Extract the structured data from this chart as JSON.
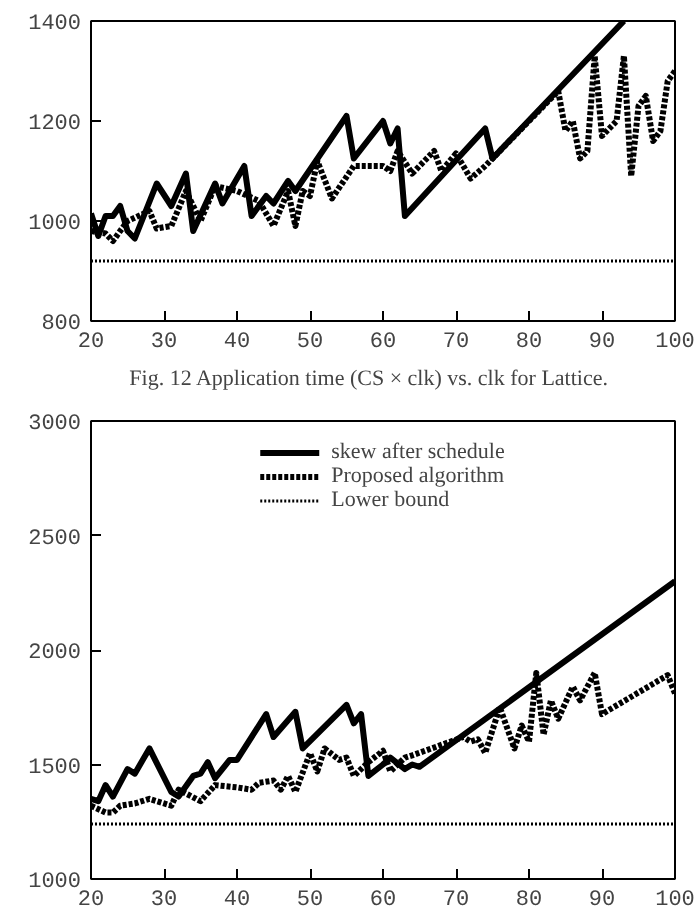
{
  "chart_data": [
    {
      "type": "line",
      "annotations": [
        "Fig. 12      Application time (CS × clk) vs. clk for Lattice."
      ],
      "xlim": [
        20,
        100
      ],
      "ylim": [
        800,
        1400
      ],
      "xticks": [
        20,
        30,
        40,
        50,
        60,
        70,
        80,
        90,
        100
      ],
      "yticks": [
        800,
        1000,
        1200,
        1400
      ],
      "grid": false,
      "legend": false,
      "series": [
        {
          "color": "#000000",
          "line_style": "solid",
          "x": [
            20,
            21,
            22,
            23,
            24,
            25,
            26,
            29,
            31,
            33,
            34,
            37,
            38,
            41,
            42,
            44,
            45,
            47,
            48,
            55,
            56,
            60,
            61,
            62,
            63,
            74,
            75,
            93
          ],
          "values": [
            1015,
            970,
            1010,
            1010,
            1030,
            980,
            965,
            1075,
            1030,
            1095,
            980,
            1075,
            1035,
            1110,
            1010,
            1050,
            1035,
            1080,
            1060,
            1210,
            1125,
            1200,
            1155,
            1185,
            1010,
            1185,
            1125,
            1400
          ]
        },
        {
          "color": "#000000",
          "line_style": "dashed",
          "x": [
            20,
            22,
            23,
            25,
            28,
            29,
            31,
            33,
            35,
            37,
            40,
            43,
            45,
            47,
            48,
            49,
            50,
            51,
            53,
            56,
            60,
            61,
            62,
            64,
            67,
            68,
            70,
            72,
            74,
            84,
            85,
            86,
            87,
            88,
            89,
            90,
            92,
            93,
            94,
            95,
            96,
            97,
            98,
            99,
            100
          ],
          "values": [
            980,
            975,
            960,
            1000,
            1020,
            985,
            990,
            1060,
            1000,
            1070,
            1060,
            1040,
            990,
            1060,
            990,
            1060,
            1050,
            1120,
            1045,
            1110,
            1110,
            1100,
            1140,
            1095,
            1140,
            1100,
            1135,
            1085,
            1110,
            1260,
            1180,
            1200,
            1125,
            1140,
            1330,
            1170,
            1200,
            1330,
            1090,
            1230,
            1250,
            1160,
            1180,
            1280,
            1300
          ]
        },
        {
          "color": "#000000",
          "line_style": "dotted",
          "x": [
            20,
            100
          ],
          "values": [
            920,
            920
          ]
        }
      ]
    },
    {
      "type": "line",
      "xlim": [
        20,
        100
      ],
      "ylim": [
        1000,
        3000
      ],
      "xticks": [
        20,
        30,
        40,
        50,
        60,
        70,
        80,
        90,
        100
      ],
      "yticks": [
        1000,
        1500,
        2000,
        2500,
        3000
      ],
      "grid": false,
      "legend": "top",
      "series": [
        {
          "name": "skew after schedule",
          "color": "#000000",
          "line_style": "solid",
          "x": [
            20,
            21,
            22,
            23,
            25,
            26,
            28,
            31,
            32,
            34,
            35,
            36,
            37,
            39,
            40,
            44,
            45,
            48,
            49,
            55,
            56,
            57,
            58,
            60,
            61,
            63,
            64,
            65,
            100
          ],
          "values": [
            1350,
            1340,
            1410,
            1360,
            1480,
            1460,
            1570,
            1380,
            1360,
            1450,
            1460,
            1510,
            1440,
            1520,
            1520,
            1720,
            1620,
            1730,
            1570,
            1760,
            1680,
            1720,
            1450,
            1500,
            1530,
            1480,
            1500,
            1490,
            2300
          ]
        },
        {
          "name": "Proposed algorithm",
          "color": "#000000",
          "line_style": "dashed",
          "x": [
            20,
            22,
            23,
            24,
            26,
            28,
            30,
            31,
            32,
            35,
            37,
            40,
            42,
            43,
            45,
            46,
            47,
            48,
            50,
            51,
            52,
            54,
            55,
            56,
            58,
            60,
            61,
            63,
            64,
            71,
            72,
            73,
            74,
            76,
            78,
            79,
            80,
            81,
            82,
            83,
            84,
            86,
            87,
            89,
            90,
            99,
            100
          ],
          "values": [
            1320,
            1290,
            1290,
            1320,
            1330,
            1350,
            1330,
            1320,
            1390,
            1340,
            1410,
            1400,
            1390,
            1420,
            1430,
            1390,
            1450,
            1380,
            1550,
            1470,
            1570,
            1520,
            1530,
            1450,
            1510,
            1560,
            1470,
            1530,
            1540,
            1620,
            1600,
            1610,
            1550,
            1750,
            1570,
            1670,
            1600,
            1900,
            1630,
            1780,
            1700,
            1840,
            1780,
            1900,
            1720,
            1890,
            1810
          ]
        },
        {
          "name": "Lower bound",
          "color": "#000000",
          "line_style": "dotted",
          "x": [
            20,
            100
          ],
          "values": [
            1240,
            1240
          ]
        }
      ]
    }
  ]
}
